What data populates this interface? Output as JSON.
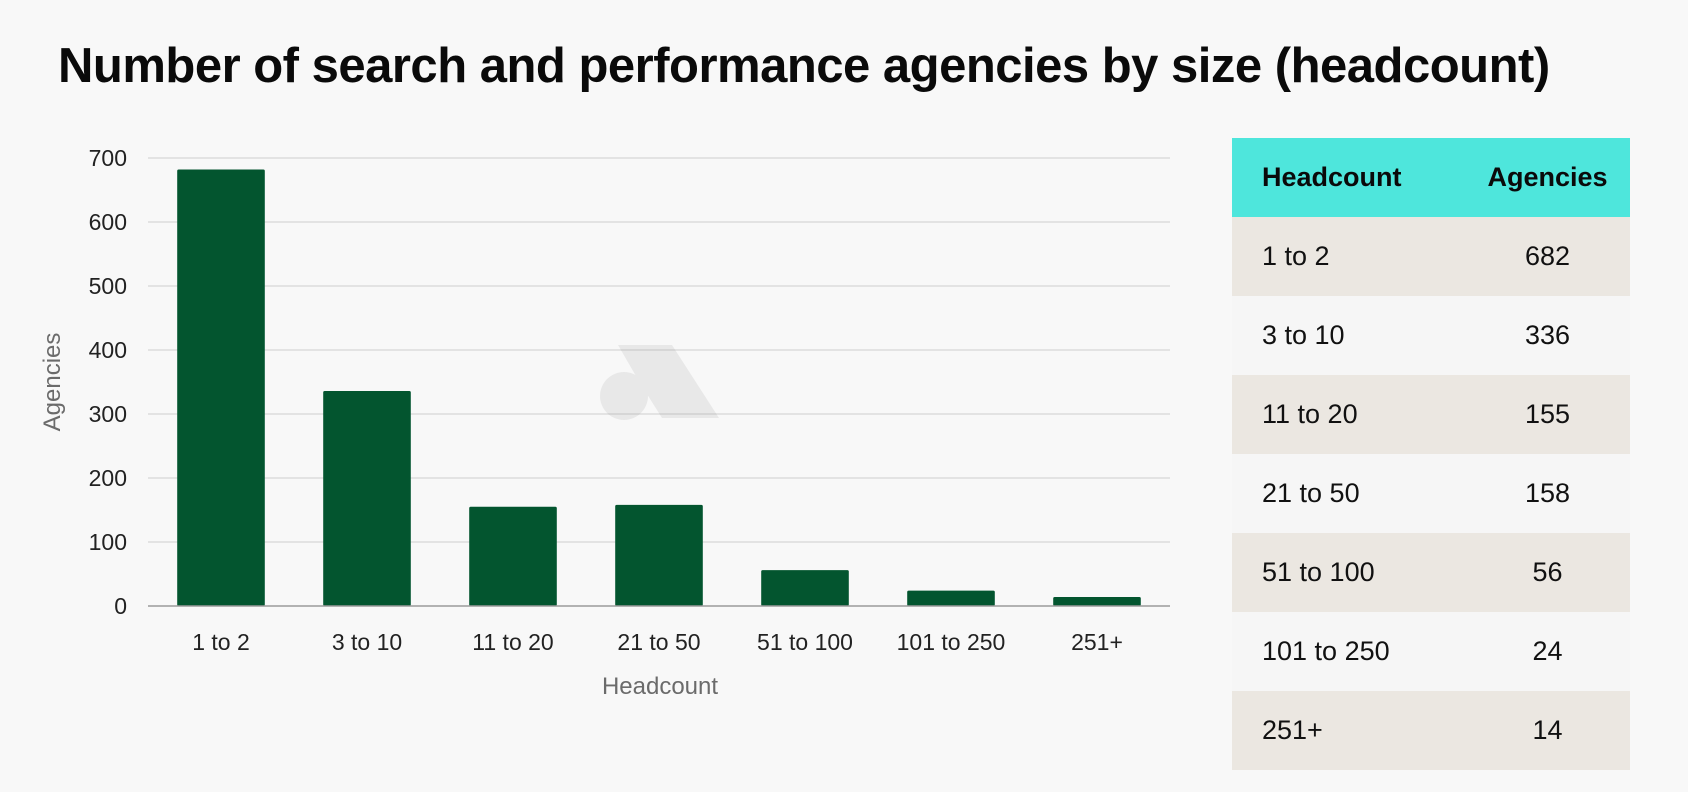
{
  "title": "Number of search and performance agencies by size (headcount)",
  "chart_data": {
    "type": "bar",
    "title": "Number of search and performance agencies by size (headcount)",
    "categories": [
      "1 to 2",
      "3 to 10",
      "11 to 20",
      "21 to 50",
      "51 to 100",
      "101 to 250",
      "251+"
    ],
    "values": [
      682,
      336,
      155,
      158,
      56,
      24,
      14
    ],
    "xlabel": "Headcount",
    "ylabel": "Agencies",
    "ylim": [
      0,
      700
    ],
    "yticks": [
      0,
      100,
      200,
      300,
      400,
      500,
      600,
      700
    ],
    "grid": true,
    "bar_color": "#03552f"
  },
  "table": {
    "headers": [
      "Headcount",
      "Agencies"
    ],
    "rows": [
      [
        "1 to 2",
        "682"
      ],
      [
        "3 to 10",
        "336"
      ],
      [
        "11 to 20",
        "155"
      ],
      [
        "21 to 50",
        "158"
      ],
      [
        "51 to 100",
        "56"
      ],
      [
        "101 to 250",
        "24"
      ],
      [
        "251+",
        "14"
      ]
    ]
  },
  "colors": {
    "accent": "#4ee6dc",
    "bar": "#03552f",
    "row_shade": "#ebe7e1",
    "background": "#f8f8f8"
  }
}
